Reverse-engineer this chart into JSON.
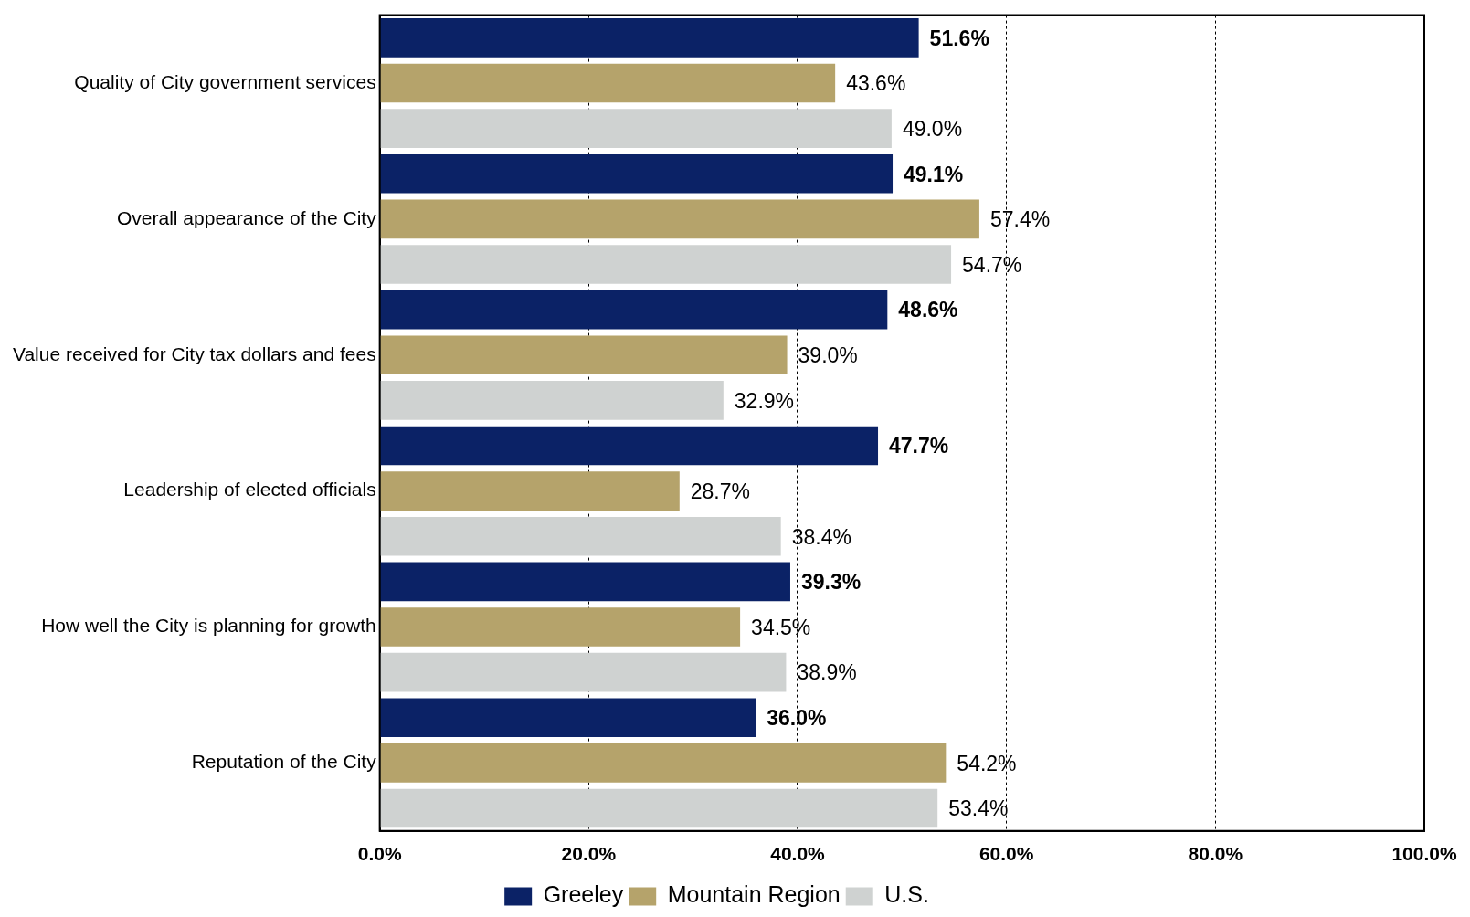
{
  "chart_data": {
    "type": "bar",
    "orientation": "horizontal",
    "categories": [
      "Quality of City government services",
      "Overall appearance of the City",
      "Value received for City tax dollars and fees",
      "Leadership of elected officials",
      "How well the City is planning for growth",
      "Reputation of the City"
    ],
    "series": [
      {
        "name": "Greeley",
        "color": "#0b2266",
        "values": [
          51.6,
          49.1,
          48.6,
          47.7,
          39.3,
          36.0
        ],
        "value_labels": [
          "51.6%",
          "49.1%",
          "48.6%",
          "47.7%",
          "39.3%",
          "36.0%"
        ]
      },
      {
        "name": "Mountain Region",
        "color": "#b5a36b",
        "values": [
          43.6,
          57.4,
          39.0,
          28.7,
          34.5,
          54.2
        ],
        "value_labels": [
          "43.6%",
          "57.4%",
          "39.0%",
          "28.7%",
          "34.5%",
          "54.2%"
        ]
      },
      {
        "name": "U.S.",
        "color": "#cfd2d1",
        "values": [
          49.0,
          54.7,
          32.9,
          38.4,
          38.9,
          53.4
        ],
        "value_labels": [
          "49.0%",
          "54.7%",
          "32.9%",
          "38.4%",
          "38.9%",
          "53.4%"
        ]
      }
    ],
    "xlim": [
      0,
      100
    ],
    "xticks": [
      {
        "value": 0,
        "label": "0.0%"
      },
      {
        "value": 20,
        "label": "20.0%"
      },
      {
        "value": 40,
        "label": "40.0%"
      },
      {
        "value": 60,
        "label": "60.0%"
      },
      {
        "value": 80,
        "label": "80.0%"
      },
      {
        "value": 100,
        "label": "100.0%"
      }
    ],
    "grid": "x",
    "line_style": "dashed",
    "legend": "bottom"
  }
}
